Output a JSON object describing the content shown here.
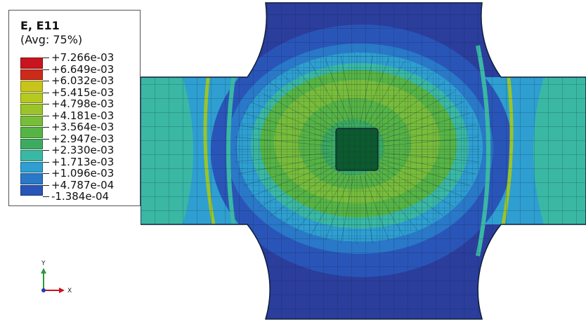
{
  "legend": {
    "title": "E, E11",
    "subtitle": "(Avg: 75%)",
    "entries": [
      {
        "label": "+7.266e-03",
        "color": "#c8141e"
      },
      {
        "label": "+6.649e-03",
        "color": "#cc2b1a"
      },
      {
        "label": "+6.032e-03",
        "color": "#c8c41a"
      },
      {
        "label": "+5.415e-03",
        "color": "#b6c91e"
      },
      {
        "label": "+4.798e-03",
        "color": "#9ac42a"
      },
      {
        "label": "+4.181e-03",
        "color": "#78bd3a"
      },
      {
        "label": "+3.564e-03",
        "color": "#56b444"
      },
      {
        "label": "+2.947e-03",
        "color": "#3cab60"
      },
      {
        "label": "+2.330e-03",
        "color": "#3ab8a4"
      },
      {
        "label": "+1.713e-03",
        "color": "#2e9fd0"
      },
      {
        "label": "+1.096e-03",
        "color": "#2a78c8"
      },
      {
        "label": "+4.787e-04",
        "color": "#2a55b8"
      },
      {
        "label": "-1.384e-04",
        "color": "#2b3e9c"
      }
    ]
  },
  "triad": {
    "y_label": "Y",
    "x_label": "X"
  },
  "colors": {
    "background": "#ffffff",
    "mesh_line": "#0d1d3a",
    "outer_blue": "#2b3e9c",
    "mid_blue": "#2a78c8",
    "light_blue": "#2e9fd0",
    "cyan": "#3ab8a4",
    "green": "#56b444",
    "light_green": "#9ac42a",
    "dark_center": "#0c5a2e"
  }
}
